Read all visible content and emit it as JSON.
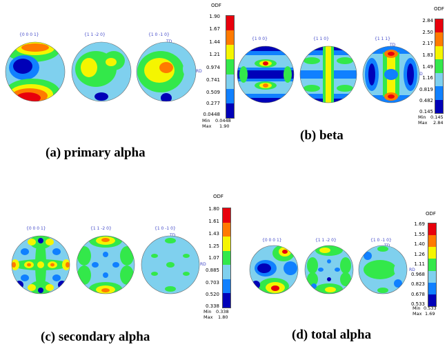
{
  "colormap": [
    "#e8000c",
    "#ff7a00",
    "#f5f500",
    "#33e84a",
    "#7fd0ee",
    "#1080ff",
    "#0000b8"
  ],
  "panels": [
    {
      "id": "a",
      "caption": "(a) primary alpha",
      "poles": [
        "{0 0 0 1}",
        "{1 1 -2 0}",
        "{1 0 -1 0}"
      ],
      "td_label": "TD",
      "rd_label": "RD",
      "odf_title": "ODF",
      "ticks": [
        "1.90",
        "1.67",
        "1.44",
        "1.21",
        "0.974",
        "0.741",
        "0.509",
        "0.277",
        "0.0448"
      ],
      "min_label": "Min",
      "min_value": "0.0448",
      "max_label": "Max",
      "max_value": "1.90"
    },
    {
      "id": "b",
      "caption": "(b) beta",
      "poles": [
        "{1 0 0}",
        "{1 1 0}",
        "{1 1 1}"
      ],
      "td_label": "TD",
      "rd_label": "RD",
      "odf_title": "ODF",
      "ticks": [
        "2.84",
        "2.50",
        "2.17",
        "1.83",
        "1.49",
        "1.16",
        "0.819",
        "0.482",
        "0.145"
      ],
      "min_label": "Min",
      "min_value": "0.145",
      "max_label": "Max",
      "max_value": "2.84"
    },
    {
      "id": "c",
      "caption": "(c)   secondary alpha",
      "poles": [
        "{0 0 0 1}",
        "{1 1 -2 0}",
        "{1 0 -1 0}"
      ],
      "td_label": "TD",
      "rd_label": "RD",
      "odf_title": "ODF",
      "ticks": [
        "1.80",
        "1.61",
        "1.43",
        "1.25",
        "1.07",
        "0.885",
        "0.703",
        "0.520",
        "0.338"
      ],
      "min_label": "Min",
      "min_value": "0.338",
      "max_label": "Max",
      "max_value": "1.80"
    },
    {
      "id": "d",
      "caption": "(d) total alpha",
      "poles": [
        "{0 0 0 1}",
        "{1 1 -2 0}",
        "{1 0 -1 0}"
      ],
      "td_label": "TD",
      "rd_label": "RD",
      "odf_title": "ODF",
      "ticks": [
        "1.69",
        "1.55",
        "1.40",
        "1.26",
        "1.11",
        "0.968",
        "0.823",
        "0.678",
        "0.533"
      ],
      "min_label": "Min",
      "min_value": "0.533",
      "max_label": "Max",
      "max_value": "1.69"
    }
  ]
}
